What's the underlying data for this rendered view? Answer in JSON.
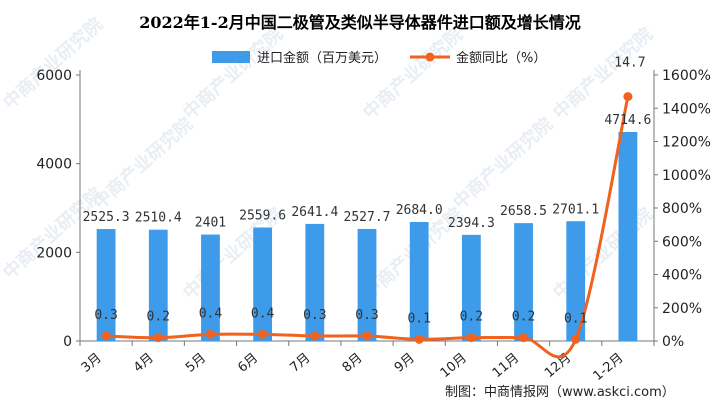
{
  "chart_data": {
    "type": "bar+line",
    "title": "2022年1-2月中国二极管及类似半导体器件进口额及增长情况",
    "categories": [
      "3月",
      "4月",
      "5月",
      "6月",
      "7月",
      "8月",
      "9月",
      "10月",
      "11月",
      "12月",
      "1-2月"
    ],
    "series": [
      {
        "name": "进口金额（百万美元）",
        "type": "bar",
        "axis": "left",
        "color": "#3d9be9",
        "values": [
          2525.3,
          2510.4,
          2401,
          2559.6,
          2641.4,
          2527.7,
          2684.0,
          2394.3,
          2658.5,
          2701.1,
          4714.6
        ],
        "labels": [
          "2525.3",
          "2510.4",
          "2401",
          "2559.6",
          "2641.4",
          "2527.7",
          "2684.0",
          "2394.3",
          "2658.5",
          "2701.1",
          "4714.6"
        ]
      },
      {
        "name": "金额同比（%）",
        "type": "line",
        "axis": "right",
        "color": "#f0621e",
        "values": [
          0.3,
          0.2,
          0.4,
          0.4,
          0.3,
          0.3,
          0.1,
          0.2,
          0.2,
          0.1,
          14.7
        ],
        "labels": [
          "0.3",
          "0.2",
          "0.4",
          "0.4",
          "0.3",
          "0.3",
          "0.1",
          "0.2",
          "0.2",
          "0.1",
          "14.7"
        ]
      }
    ],
    "y_left": {
      "ticks": [
        "0",
        "2000",
        "4000",
        "6000"
      ],
      "range": [
        0,
        6000
      ]
    },
    "y_right": {
      "ticks": [
        "0%",
        "200%",
        "400%",
        "600%",
        "800%",
        "1000%",
        "1200%",
        "1400%",
        "1600%"
      ],
      "range": [
        0,
        16
      ]
    },
    "legend_position": "top-center",
    "grid": false,
    "source": "制图：中商情报网（www.askci.com）",
    "watermark": "中商产业研究院"
  }
}
